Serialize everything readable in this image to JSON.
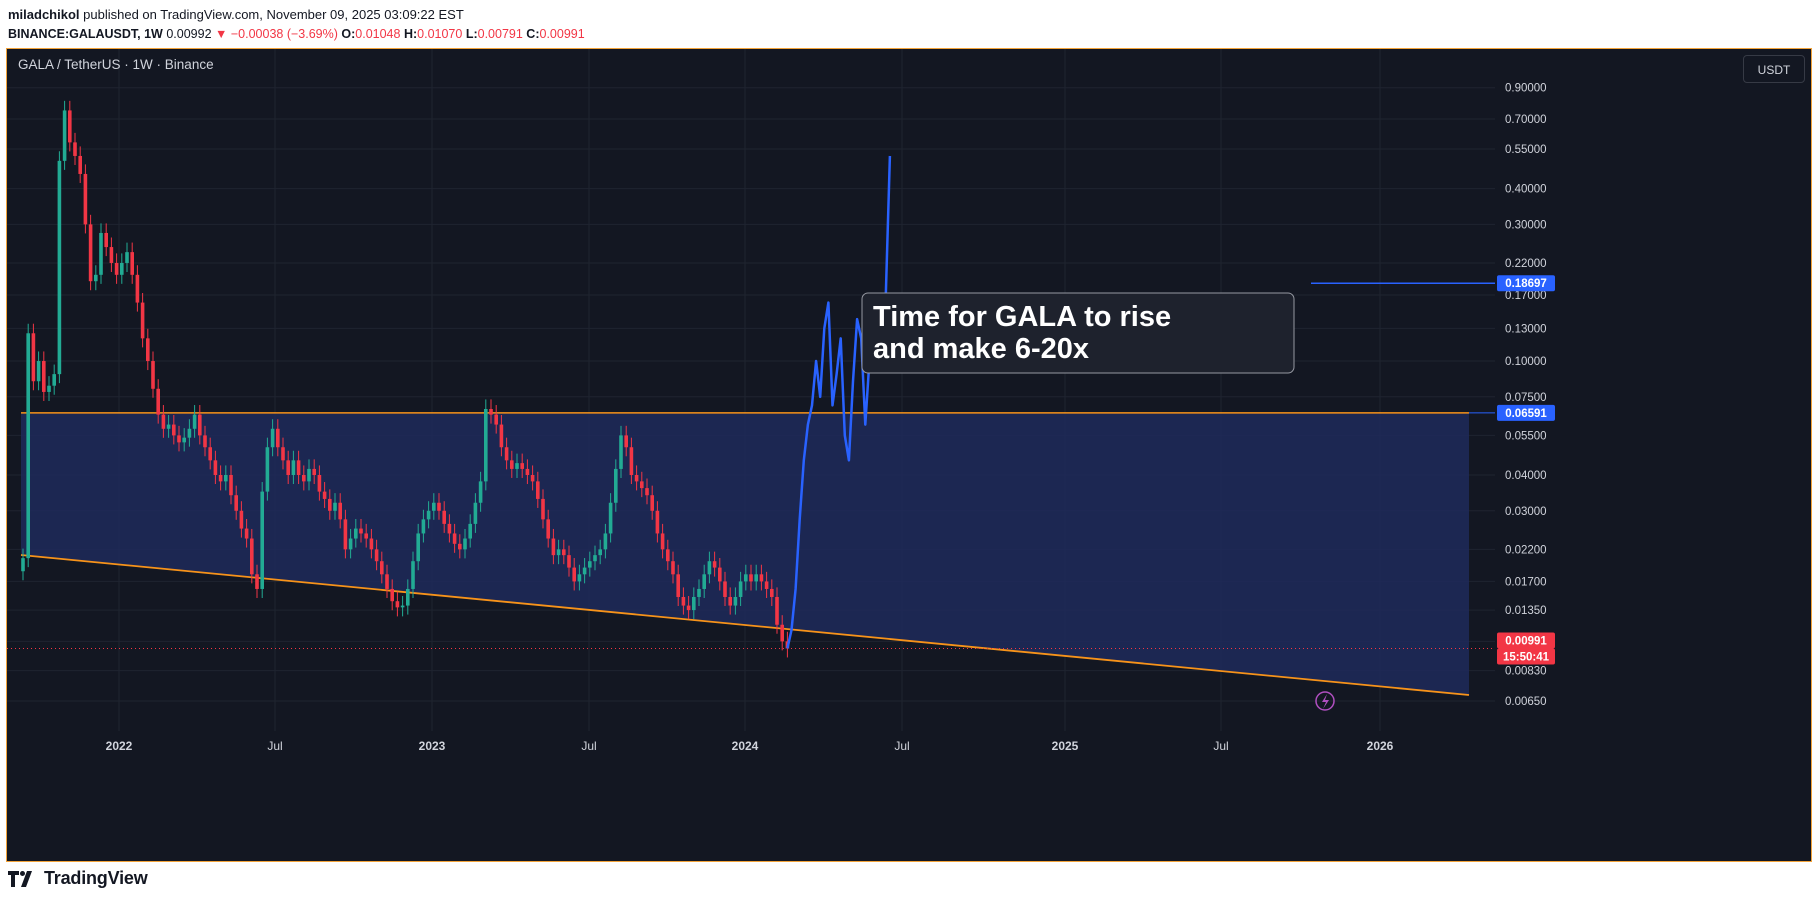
{
  "header": {
    "author": "miladchikol",
    "published_text": "published on TradingView.com, November 09, 2025 03:09:22 EST",
    "symbol_line": "BINANCE:GALAUSDT, 1W",
    "price": "0.00992",
    "change": "▼ −0.00038 (−3.69%)",
    "o_label": "O:",
    "o_value": "0.01048",
    "h_label": "H:",
    "h_value": "0.01070",
    "l_label": "L:",
    "l_value": "0.00791",
    "c_label": "C:",
    "c_value": "0.00991"
  },
  "chart_title": "GALA / TetherUS · 1W · Binance",
  "currency_button": "USDT",
  "footer_brand": "TradingView",
  "colors": {
    "up": "#22ab94",
    "down": "#f23645",
    "projection": "#2962ff",
    "trendline": "#f7931a",
    "zone": "#1e2a5a",
    "background": "#131722"
  },
  "chart_data": {
    "type": "candlestick",
    "scale": "log",
    "x_labels": [
      "2022",
      "Jul",
      "2023",
      "Jul",
      "2024",
      "Jul",
      "2025",
      "Jul",
      "2026"
    ],
    "y_ticks": [
      "0.90000",
      "0.70000",
      "0.55000",
      "0.40000",
      "0.30000",
      "0.22000",
      "0.17000",
      "0.13000",
      "0.10000",
      "0.07500",
      "0.05500",
      "0.04000",
      "0.03000",
      "0.02200",
      "0.01700",
      "0.01350",
      "0.01050",
      "0.00830",
      "0.00650"
    ],
    "y_tick_values": [
      0.9,
      0.7,
      0.55,
      0.4,
      0.3,
      0.22,
      0.17,
      0.13,
      0.1,
      0.075,
      0.055,
      0.04,
      0.03,
      0.022,
      0.017,
      0.0135,
      0.0105,
      0.0083,
      0.0065
    ],
    "price_labels": [
      {
        "text": "0.18697",
        "value": 0.18697,
        "color": "#2962ff"
      },
      {
        "text": "0.06591",
        "value": 0.06591,
        "color": "#2962ff"
      },
      {
        "text": "0.00991",
        "value": 0.00991,
        "color": "#f23645"
      },
      {
        "text": "15:50:41",
        "value": 0.00991,
        "color": "#f23645"
      }
    ],
    "horizontal_resistance": 0.06591,
    "target_line": 0.18697,
    "current_price": 0.00991,
    "annotation": "Time for GALA to rise and make 6-20x",
    "weekly_closes": [
      0.0205,
      0.125,
      0.085,
      0.1,
      0.078,
      0.082,
      0.09,
      0.5,
      0.75,
      0.58,
      0.52,
      0.45,
      0.3,
      0.19,
      0.2,
      0.28,
      0.25,
      0.22,
      0.2,
      0.22,
      0.24,
      0.2,
      0.16,
      0.12,
      0.1,
      0.08,
      0.065,
      0.058,
      0.06,
      0.055,
      0.052,
      0.054,
      0.058,
      0.065,
      0.055,
      0.05,
      0.045,
      0.04,
      0.038,
      0.04,
      0.034,
      0.03,
      0.026,
      0.024,
      0.018,
      0.016,
      0.035,
      0.05,
      0.058,
      0.05,
      0.045,
      0.04,
      0.045,
      0.04,
      0.038,
      0.042,
      0.04,
      0.035,
      0.033,
      0.03,
      0.032,
      0.028,
      0.022,
      0.024,
      0.026,
      0.025,
      0.024,
      0.022,
      0.02,
      0.018,
      0.016,
      0.0145,
      0.0138,
      0.014,
      0.016,
      0.02,
      0.025,
      0.028,
      0.03,
      0.032,
      0.03,
      0.027,
      0.025,
      0.023,
      0.022,
      0.024,
      0.027,
      0.032,
      0.038,
      0.068,
      0.065,
      0.06,
      0.05,
      0.045,
      0.042,
      0.044,
      0.042,
      0.04,
      0.038,
      0.033,
      0.028,
      0.024,
      0.021,
      0.022,
      0.021,
      0.019,
      0.017,
      0.018,
      0.019,
      0.02,
      0.021,
      0.022,
      0.025,
      0.032,
      0.042,
      0.055,
      0.05,
      0.04,
      0.038,
      0.036,
      0.034,
      0.03,
      0.025,
      0.022,
      0.02,
      0.018,
      0.015,
      0.014,
      0.0135,
      0.015,
      0.016,
      0.018,
      0.02,
      0.019,
      0.017,
      0.015,
      0.014,
      0.015,
      0.017,
      0.018,
      0.017,
      0.018,
      0.017,
      0.016,
      0.015,
      0.012,
      0.0105,
      0.00992
    ],
    "projection_path": [
      [
        0.00992,
        0
      ],
      [
        0.0115,
        2
      ],
      [
        0.016,
        4
      ],
      [
        0.028,
        6
      ],
      [
        0.045,
        8
      ],
      [
        0.06,
        10
      ],
      [
        0.07,
        12
      ],
      [
        0.1,
        14
      ],
      [
        0.075,
        16
      ],
      [
        0.13,
        18
      ],
      [
        0.16,
        20
      ],
      [
        0.07,
        22
      ],
      [
        0.09,
        24
      ],
      [
        0.12,
        26
      ],
      [
        0.055,
        28
      ],
      [
        0.045,
        30
      ],
      [
        0.085,
        32
      ],
      [
        0.14,
        34
      ],
      [
        0.12,
        36
      ],
      [
        0.06,
        38
      ],
      [
        0.1,
        40
      ],
      [
        0.13,
        42
      ],
      [
        0.16,
        44
      ],
      [
        0.14,
        46
      ],
      [
        0.17,
        48
      ],
      [
        0.52,
        50
      ]
    ]
  }
}
